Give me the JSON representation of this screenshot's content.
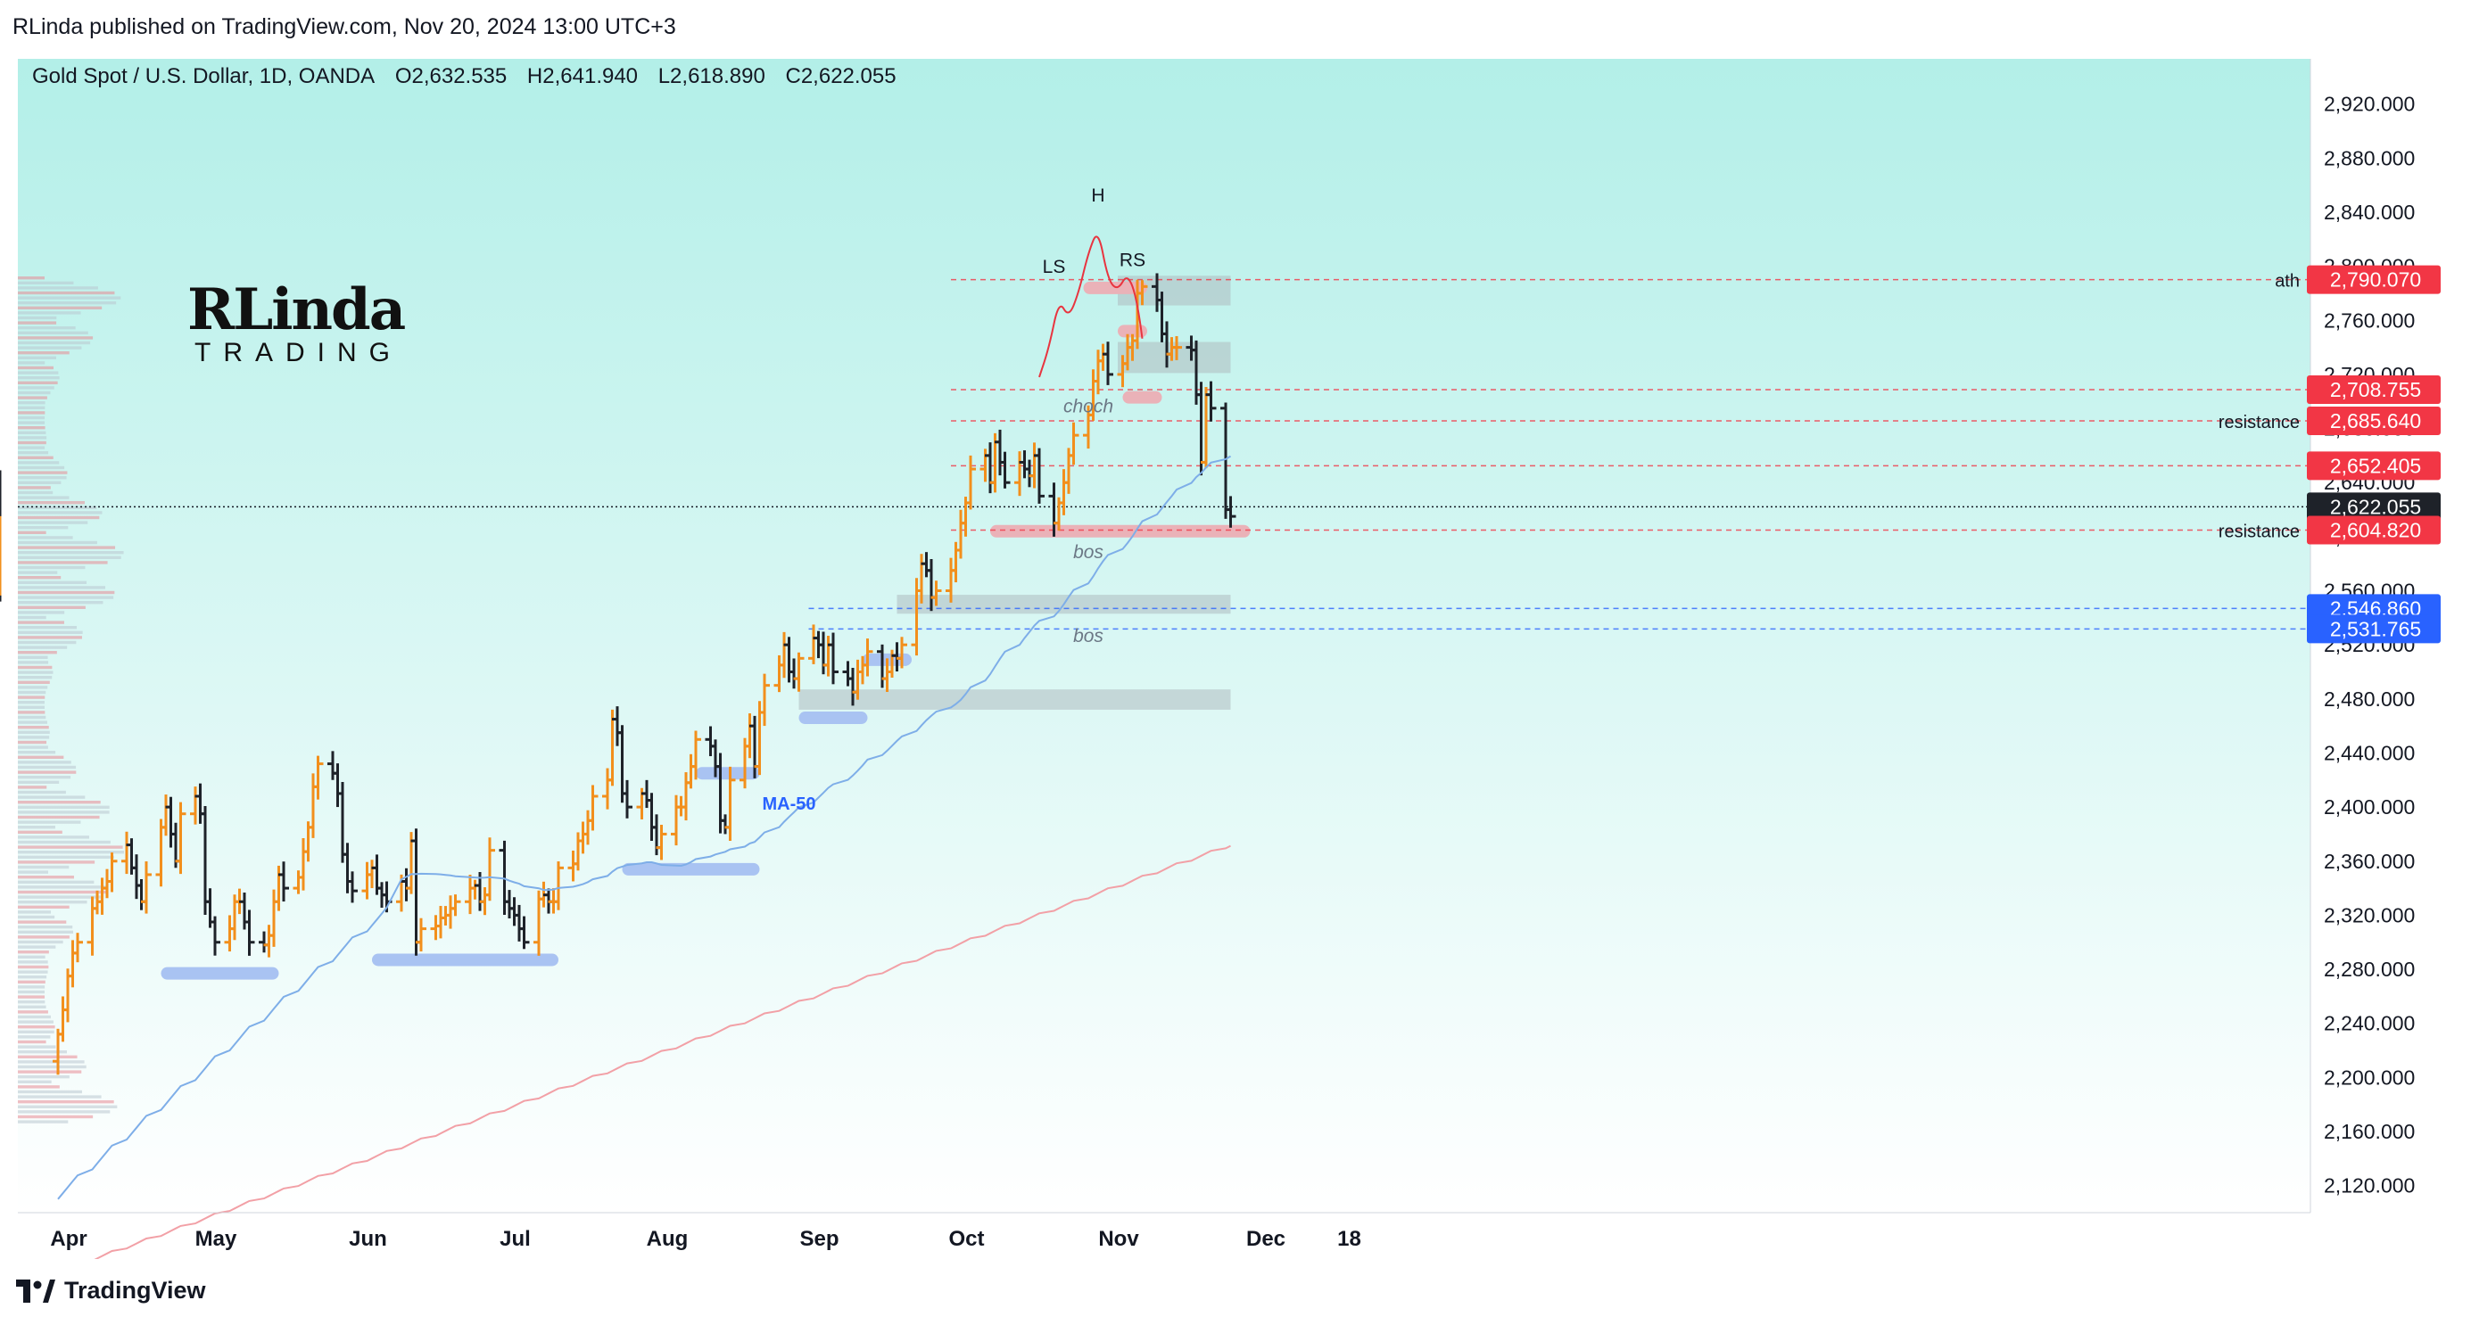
{
  "header": {
    "published": "RLinda published on TradingView.com, Nov 20, 2024 13:00 UTC+3"
  },
  "legend": {
    "symbol": "Gold Spot / U.S. Dollar, 1D, OANDA",
    "open": "O2,632.535",
    "high": "H2,641.940",
    "low": "L2,618.890",
    "close": "C2,622.055"
  },
  "logo": {
    "line1": "RLinda",
    "line2": "TRADING"
  },
  "footer": {
    "brand": "TradingView"
  },
  "colors": {
    "up": "#f28f1c",
    "down": "#1e2229",
    "ma50": "#7eaee8",
    "ma200": "#f2a0a6",
    "bg_top": "#b2efe8",
    "bg_bottom": "#ffffff",
    "red_label": "#f23645",
    "blue_label": "#2962ff",
    "dark_label": "#1e2229"
  },
  "chart_data": {
    "type": "candlestick",
    "title": "Gold Spot / U.S. Dollar, 1D, OANDA",
    "ylim": [
      2100,
      2960
    ],
    "y_ticks": [
      "2,920.000",
      "2,880.000",
      "2,840.000",
      "2,800.000",
      "2,760.000",
      "2,720.000",
      "2,680.000",
      "2,640.000",
      "2,600.000",
      "2,560.000",
      "2,520.000",
      "2,480.000",
      "2,440.000",
      "2,400.000",
      "2,360.000",
      "2,320.000",
      "2,280.000",
      "2,240.000",
      "2,200.000",
      "2,160.000",
      "2,120.000"
    ],
    "x_ticks": [
      "Apr",
      "May",
      "Jun",
      "Jul",
      "Aug",
      "Sep",
      "Oct",
      "Nov",
      "Dec",
      "18"
    ],
    "start_date": "2024-04-01",
    "closes": [
      2232,
      2250,
      2275,
      2292,
      2300,
      2325,
      2330,
      2340,
      2345,
      2360,
      2372,
      2355,
      2342,
      2330,
      2350,
      2385,
      2400,
      2380,
      2360,
      2395,
      2408,
      2395,
      2330,
      2315,
      2300,
      2310,
      2330,
      2330,
      2315,
      2300,
      2298,
      2305,
      2330,
      2350,
      2340,
      2348,
      2367,
      2385,
      2415,
      2432,
      2425,
      2410,
      2365,
      2345,
      2338,
      2350,
      2355,
      2340,
      2335,
      2330,
      2345,
      2340,
      2375,
      2300,
      2310,
      2312,
      2318,
      2320,
      2325,
      2330,
      2340,
      2342,
      2330,
      2335,
      2368,
      2330,
      2325,
      2320,
      2310,
      2300,
      2332,
      2335,
      2330,
      2330,
      2355,
      2358,
      2375,
      2380,
      2390,
      2408,
      2420,
      2465,
      2455,
      2410,
      2400,
      2410,
      2405,
      2385,
      2370,
      2380,
      2400,
      2400,
      2418,
      2430,
      2450,
      2445,
      2430,
      2390,
      2385,
      2420,
      2445,
      2460,
      2430,
      2470,
      2490,
      2505,
      2520,
      2500,
      2495,
      2510,
      2525,
      2520,
      2505,
      2520,
      2500,
      2495,
      2485,
      2500,
      2505,
      2515,
      2495,
      2500,
      2512,
      2510,
      2520,
      2560,
      2580,
      2575,
      2555,
      2560,
      2575,
      2590,
      2610,
      2625,
      2650,
      2660,
      2640,
      2670,
      2655,
      2640,
      2655,
      2650,
      2645,
      2660,
      2630,
      2610,
      2625,
      2640,
      2660,
      2675,
      2690,
      2715,
      2730,
      2735,
      2720,
      2728,
      2740,
      2745,
      2780,
      2785,
      2775,
      2750,
      2735,
      2740,
      2740,
      2738,
      2705,
      2655,
      2705,
      2695,
      2620,
      2615,
      2575,
      2565,
      2562,
      2590,
      2610,
      2640,
      2622
    ],
    "series": [
      {
        "name": "MA-50"
      }
    ],
    "horizontal_lines": [
      {
        "label": "ath",
        "value": 2790.07
      },
      {
        "value": 2708.755
      },
      {
        "label": "resistance",
        "value": 2685.64
      },
      {
        "value": 2652.405
      },
      {
        "label": "resistance",
        "value": 2604.82
      },
      {
        "value": 2546.86
      },
      {
        "value": 2531.765
      }
    ],
    "price_labels": [
      {
        "text": "2,790.070",
        "value": 2790.07,
        "color": "#f23645"
      },
      {
        "text": "2,708.755",
        "value": 2708.755,
        "color": "#f23645"
      },
      {
        "text": "2,685.640",
        "value": 2685.64,
        "color": "#f23645"
      },
      {
        "text": "2,652.405",
        "value": 2652.405,
        "color": "#f23645"
      },
      {
        "text": "2,622.055",
        "value": 2622.055,
        "color": "#1e2229"
      },
      {
        "text": "2,604.820",
        "value": 2604.82,
        "color": "#f23645"
      },
      {
        "text": "2,546.860",
        "value": 2546.86,
        "color": "#2962ff"
      },
      {
        "text": "2,531.765",
        "value": 2531.765,
        "color": "#2962ff"
      }
    ],
    "annotations": [
      {
        "text": "LS",
        "date": "2024-10-21",
        "value": 2795
      },
      {
        "text": "H",
        "date": "2024-10-30",
        "value": 2848
      },
      {
        "text": "RS",
        "date": "2024-11-06",
        "value": 2800
      },
      {
        "text": "choch",
        "date": "2024-10-28",
        "value": 2692
      },
      {
        "text": "bos",
        "date": "2024-10-28",
        "value": 2584
      },
      {
        "text": "bos",
        "date": "2024-10-28",
        "value": 2522
      },
      {
        "text": "MA-50",
        "date": "2024-08-28",
        "value": 2398
      }
    ],
    "support_zones": [
      {
        "start": "2024-04-22",
        "end": "2024-05-16",
        "value": 2277
      },
      {
        "start": "2024-06-04",
        "end": "2024-07-12",
        "value": 2287
      },
      {
        "start": "2024-07-25",
        "end": "2024-08-22",
        "value": 2354
      },
      {
        "start": "2024-08-09",
        "end": "2024-08-22",
        "value": 2425
      },
      {
        "start": "2024-08-30",
        "end": "2024-09-13",
        "value": 2466
      },
      {
        "start": "2024-09-12",
        "end": "2024-09-22",
        "value": 2509
      }
    ],
    "resistance_zones": [
      {
        "start": "2024-10-27",
        "end": "2024-11-09",
        "value": 2784
      },
      {
        "start": "2024-11-03",
        "end": "2024-11-09",
        "value": 2752
      },
      {
        "start": "2024-11-04",
        "end": "2024-11-12",
        "value": 2703
      },
      {
        "start": "2024-10-08",
        "end": "2024-11-30",
        "value": 2604
      }
    ],
    "box_zones": [
      {
        "start": "2024-11-03",
        "end": "2024-11-26",
        "low": 2771,
        "high": 2793
      },
      {
        "start": "2024-11-03",
        "end": "2024-11-26",
        "low": 2721,
        "high": 2744
      },
      {
        "start": "2024-09-19",
        "end": "2024-11-26",
        "low": 2543,
        "high": 2557
      },
      {
        "start": "2024-08-30",
        "end": "2024-11-26",
        "low": 2472,
        "high": 2487
      }
    ],
    "head_shoulders_path": [
      [
        "2024-10-18",
        2718
      ],
      [
        "2024-10-20",
        2740
      ],
      [
        "2024-10-22",
        2775
      ],
      [
        "2024-10-24",
        2762
      ],
      [
        "2024-10-26",
        2780
      ],
      [
        "2024-10-28",
        2810
      ],
      [
        "2024-10-30",
        2828
      ],
      [
        "2024-11-01",
        2790
      ],
      [
        "2024-11-03",
        2782
      ],
      [
        "2024-11-05",
        2795
      ],
      [
        "2024-11-07",
        2775
      ],
      [
        "2024-11-09",
        2718
      ]
    ]
  }
}
